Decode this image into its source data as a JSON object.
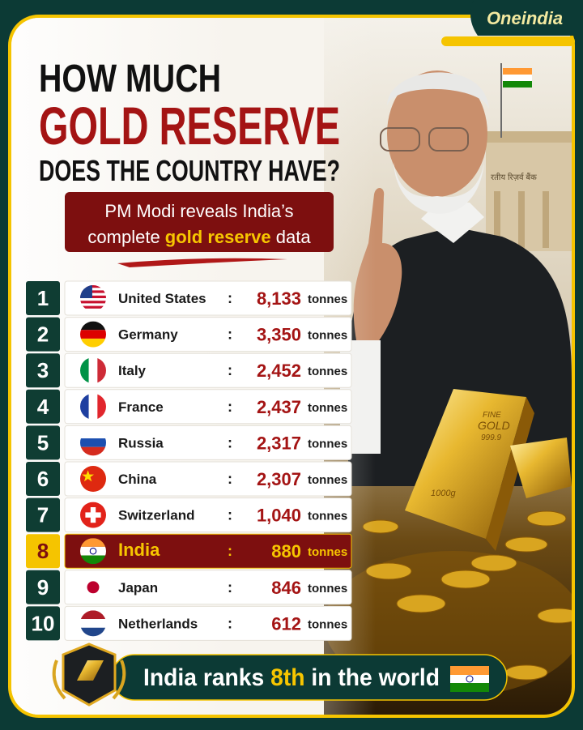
{
  "brand": "Oneindia",
  "header": {
    "line1": "HOW MUCH",
    "line2": "GOLD RESERVE",
    "line3": "DOES THE COUNTRY HAVE?"
  },
  "subtitle": {
    "line1": "PM Modi reveals India’s",
    "line2_pre": "complete ",
    "line2_highlight": "gold reserve",
    "line2_post": " data"
  },
  "table": {
    "separator": ":",
    "unit": "tonnes",
    "rows": [
      {
        "rank": "1",
        "country": "United States",
        "value": "8,133"
      },
      {
        "rank": "2",
        "country": "Germany",
        "value": "3,350"
      },
      {
        "rank": "3",
        "country": "Italy",
        "value": "2,452"
      },
      {
        "rank": "4",
        "country": "France",
        "value": "2,437"
      },
      {
        "rank": "5",
        "country": "Russia",
        "value": "2,317"
      },
      {
        "rank": "6",
        "country": "China",
        "value": "2,307"
      },
      {
        "rank": "7",
        "country": "Switzerland",
        "value": "1,040"
      },
      {
        "rank": "8",
        "country": "India",
        "value": "880",
        "highlighted": true
      },
      {
        "rank": "9",
        "country": "Japan",
        "value": "846"
      },
      {
        "rank": "10",
        "country": "Netherlands",
        "value": "612"
      }
    ]
  },
  "footer": {
    "pre": "India ranks ",
    "highlight": "8th",
    "post": " in the world"
  },
  "image_text": {
    "bar_line1": "FINE",
    "bar_line2": "GOLD",
    "bar_line3": "999.9",
    "bar_weight": "1000g",
    "building": "रतीय रिज़र्व बैंक"
  }
}
